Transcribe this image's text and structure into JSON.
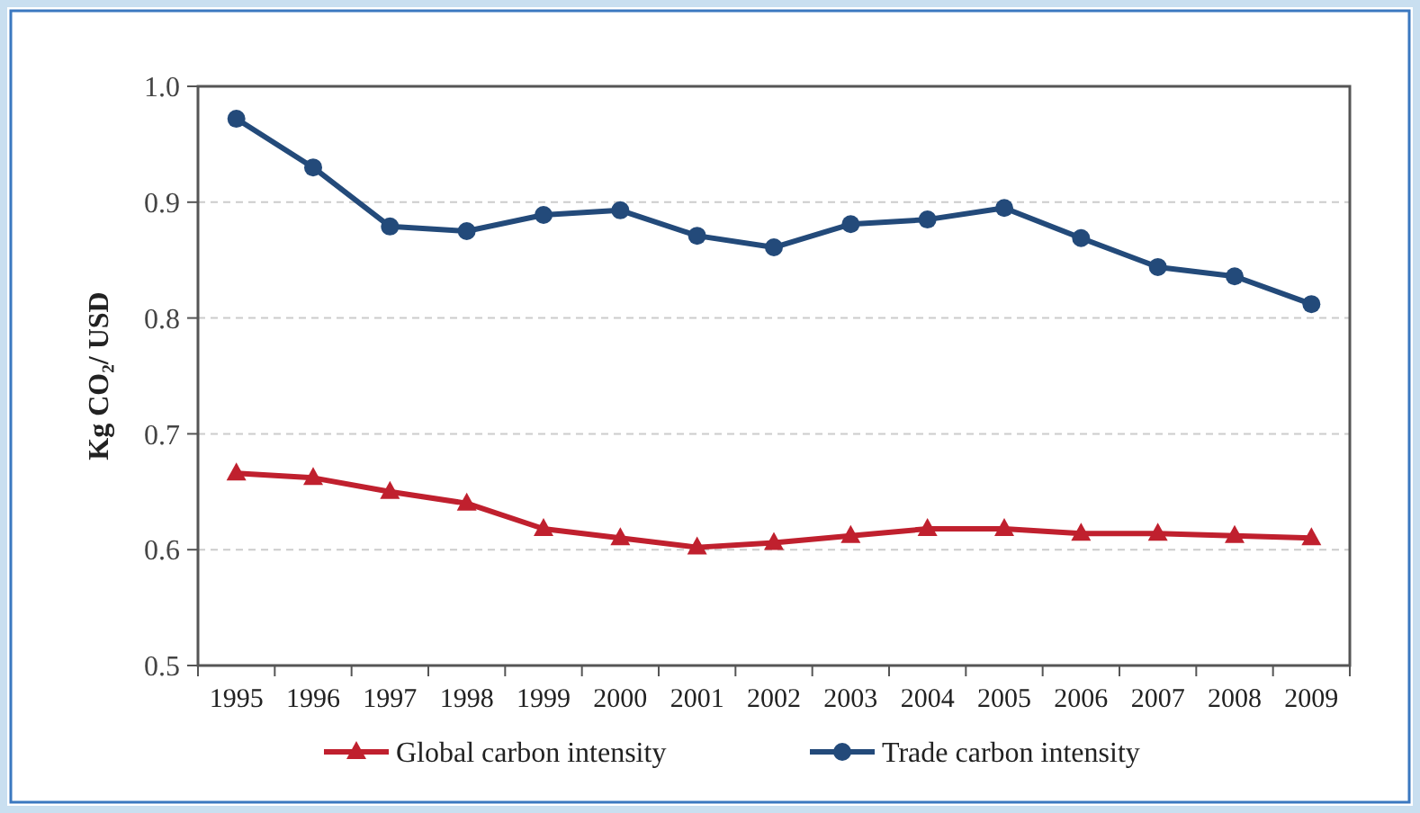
{
  "chart_data": {
    "type": "line",
    "ylabel": "Kg CO₂/ USD",
    "categories": [
      "1995",
      "1996",
      "1997",
      "1998",
      "1999",
      "2000",
      "2001",
      "2002",
      "2003",
      "2004",
      "2005",
      "2006",
      "2007",
      "2008",
      "2009"
    ],
    "series": [
      {
        "name": "Global carbon intensity",
        "color": "#c0202e",
        "marker": "triangle",
        "values": [
          0.666,
          0.662,
          0.65,
          0.64,
          0.618,
          0.61,
          0.602,
          0.606,
          0.612,
          0.618,
          0.618,
          0.614,
          0.614,
          0.612,
          0.61
        ]
      },
      {
        "name": "Trade carbon intensity",
        "color": "#234a7a",
        "marker": "circle",
        "values": [
          0.972,
          0.93,
          0.879,
          0.875,
          0.889,
          0.893,
          0.871,
          0.861,
          0.881,
          0.885,
          0.895,
          0.869,
          0.844,
          0.836,
          0.812
        ]
      }
    ],
    "ylim": [
      0.5,
      1.0
    ],
    "yticks": [
      {
        "value": 0.5,
        "label": "0.5"
      },
      {
        "value": 0.6,
        "label": "0.6"
      },
      {
        "value": 0.7,
        "label": "0.7"
      },
      {
        "value": 0.8,
        "label": "0.8"
      },
      {
        "value": 0.9,
        "label": "0.9"
      },
      {
        "value": 1.0,
        "label": "1.0"
      }
    ],
    "grid": "y",
    "legend": "bottom",
    "line_style": "solid"
  }
}
